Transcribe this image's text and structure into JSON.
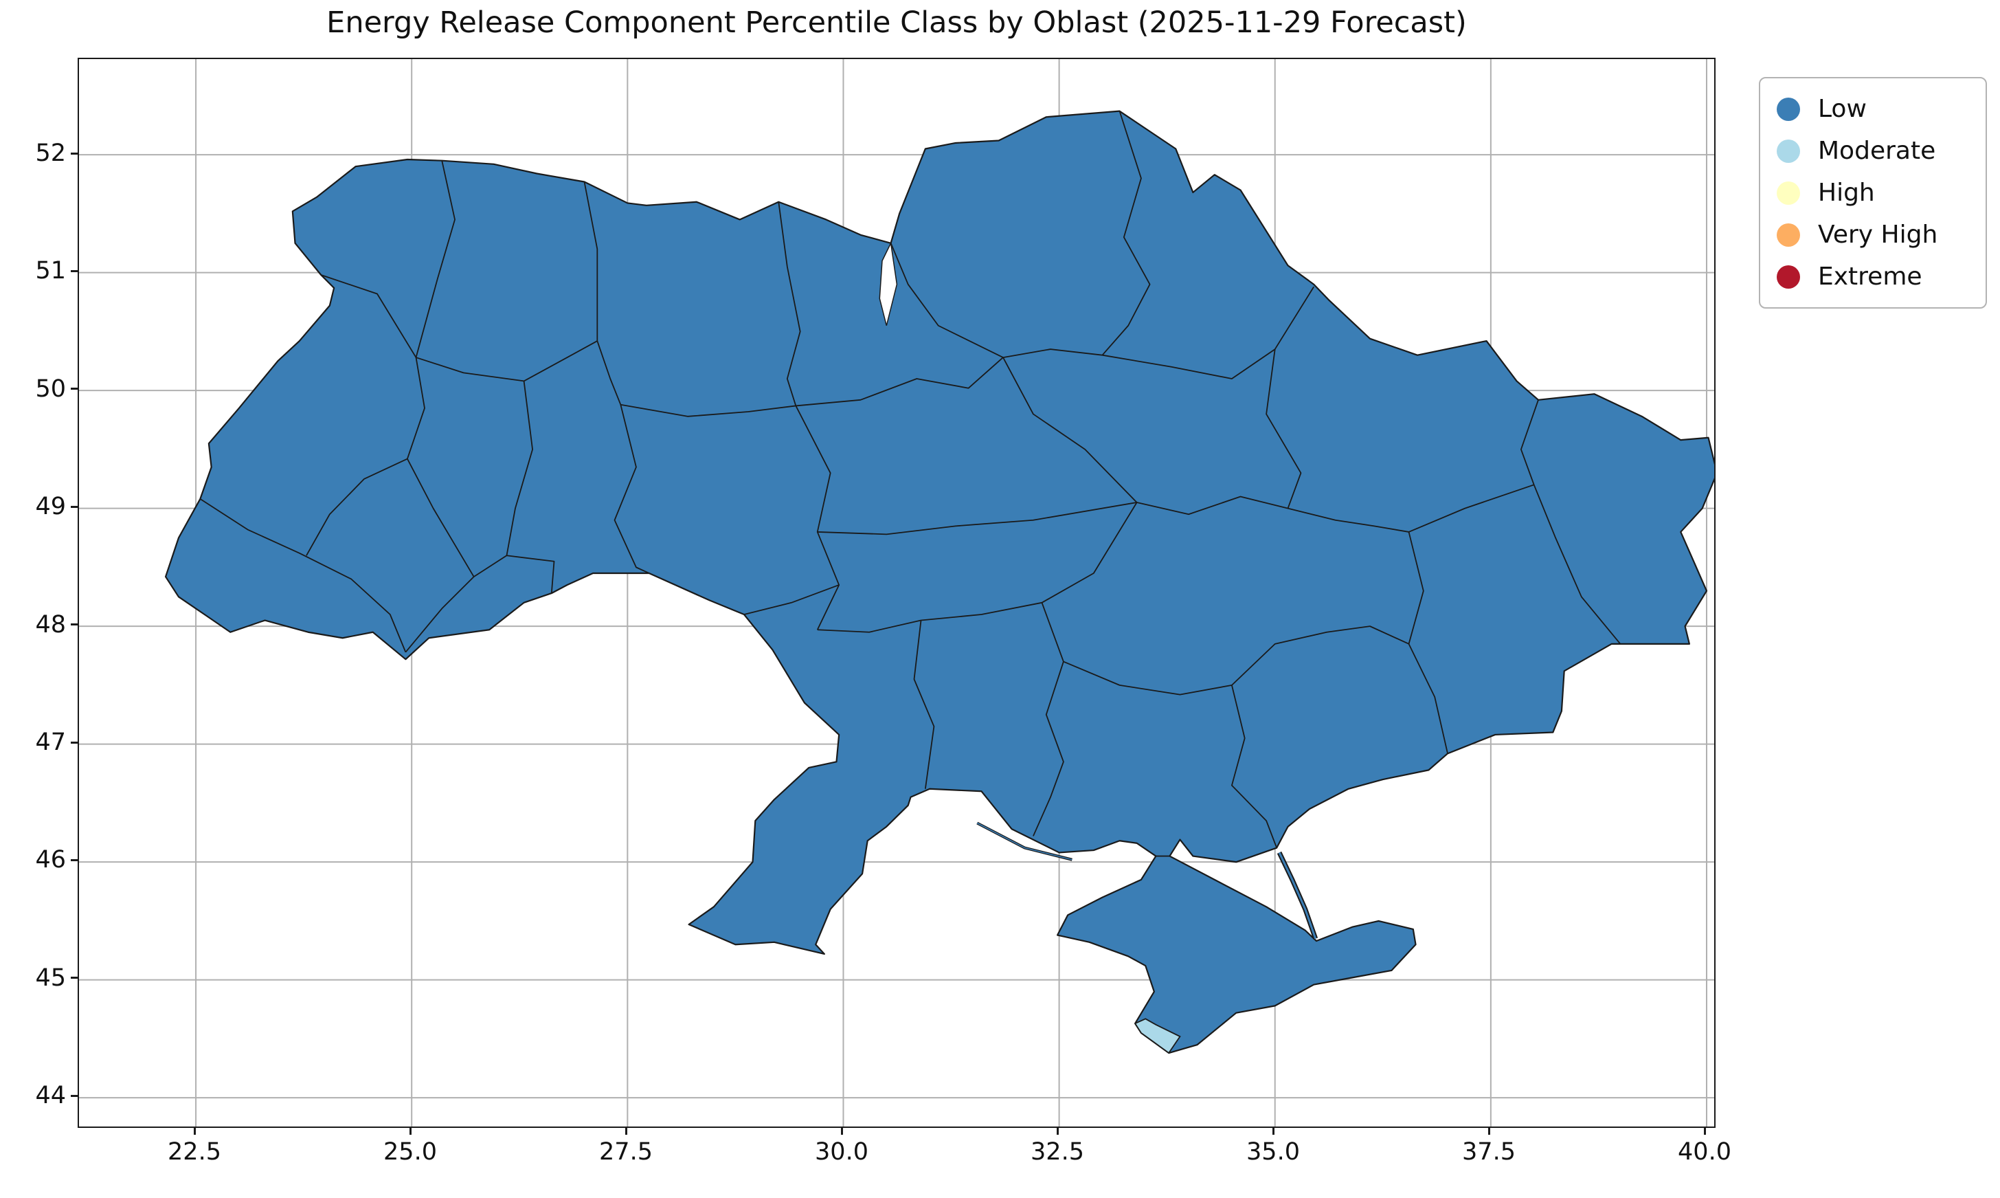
{
  "title": "Energy Release Component Percentile Class by Oblast (2025-11-29 Forecast)",
  "chart_data": {
    "type": "choropleth",
    "title": "Energy Release Component Percentile Class by Oblast (2025-11-29 Forecast)",
    "geography": "Ukraine shown with oblast-level administrative boundaries",
    "x_ticks": [
      "22.5",
      "25.0",
      "27.5",
      "30.0",
      "32.5",
      "35.0",
      "37.5",
      "40.0"
    ],
    "y_ticks": [
      "44",
      "45",
      "46",
      "47",
      "48",
      "49",
      "50",
      "51",
      "52"
    ],
    "grid": true,
    "legend": {
      "position": "upper-right, outside plot area",
      "entries": [
        {
          "label": "Low",
          "color": "#3b7eb5"
        },
        {
          "label": "Moderate",
          "color": "#abd9e9"
        },
        {
          "label": "High",
          "color": "#ffffbf"
        },
        {
          "label": "Very High",
          "color": "#fdae61"
        },
        {
          "label": "Extreme",
          "color": "#b2182b"
        }
      ]
    },
    "region_values": {
      "dominant_class": "Low",
      "description": "Every oblast polygon is filled with the Low class color; a single small coastal region at the southern tip of Crimea (Sevastopol area) is filled with the Moderate class color.",
      "exceptions": [
        {
          "area": "southern Crimea coastal tip (Sevastopol area)",
          "class": "Moderate"
        }
      ]
    },
    "styling": {
      "region_edge": "#1a1a1a",
      "grid_color": "#b0b0b0",
      "background": "#ffffff"
    }
  }
}
